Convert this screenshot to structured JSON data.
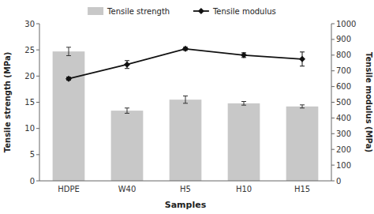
{
  "chart_data": {
    "type": "bar",
    "xlabel": "Samples",
    "ylabel": "Tensile strength (MPa)",
    "y2label": "Tensile modulus (MPa)",
    "categories": [
      "HDPE",
      "W40",
      "H5",
      "H10",
      "H15"
    ],
    "series": [
      {
        "name": "Tensile strength",
        "type": "bar",
        "color": "#c8c8c8",
        "values": [
          24.7,
          13.4,
          15.5,
          14.8,
          14.2
        ],
        "errors": [
          0.8,
          0.5,
          0.7,
          0.35,
          0.3
        ]
      },
      {
        "name": "Tensile modulus",
        "type": "line",
        "axis": "y2",
        "color": "#111111",
        "marker": "diamond",
        "values": [
          650,
          740,
          840,
          800,
          775
        ],
        "errors": [
          10,
          25,
          10,
          15,
          45
        ]
      }
    ],
    "ylim": [
      0,
      30
    ],
    "yticks": [
      0,
      5,
      10,
      15,
      20,
      25,
      30
    ],
    "y2lim": [
      0,
      1000
    ],
    "y2ticks": [
      0,
      100,
      200,
      300,
      400,
      500,
      600,
      700,
      800,
      900,
      1000
    ],
    "grid": false,
    "legend": "top"
  }
}
